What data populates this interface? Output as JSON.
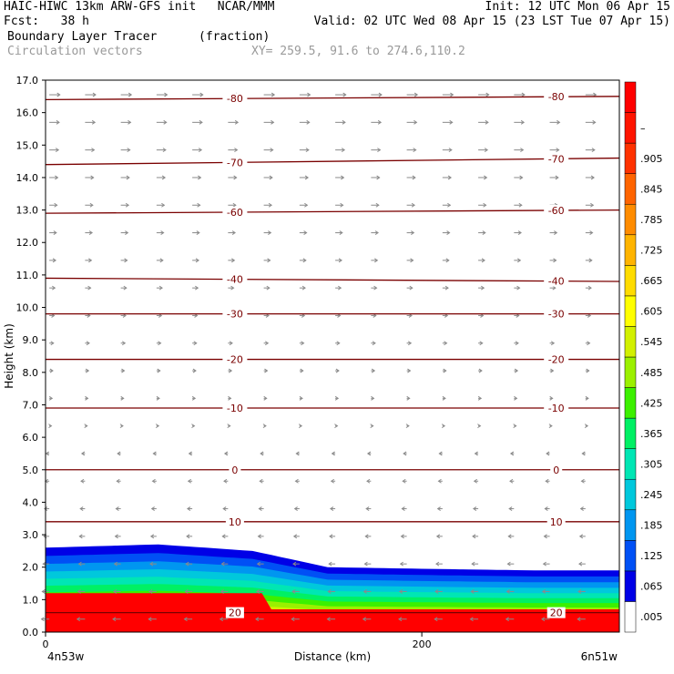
{
  "header": {
    "line1_left": "HAIC-HIWC 13km ARW-GFS init   NCAR/MMM",
    "line1_right": "Init: 12 UTC Mon 06 Apr 15",
    "line2_left": "Fcst:   38 h",
    "line2_right": "Valid: 02 UTC Wed 08 Apr 15 (23 LST Tue 07 Apr 15)",
    "field_name": "Boundary Layer Tracer",
    "field_units": "(fraction)",
    "vector_name": "Circulation vectors",
    "xy_range": "XY= 259.5, 91.6 to 274.6,110.2"
  },
  "chart_data": {
    "type": "heatmap",
    "xlabel": "Distance (km)",
    "ylabel": "Height (km)",
    "x_ticks": [
      {
        "value": 0,
        "label": "0"
      },
      {
        "value": 200,
        "label": "200"
      }
    ],
    "x_end_labels": {
      "left": "4n53w",
      "right": "6n51w"
    },
    "x_range_km": [
      0,
      305
    ],
    "ylim": [
      0,
      17
    ],
    "y_ticks": [
      "0.0",
      "1.0",
      "2.0",
      "3.0",
      "4.0",
      "5.0",
      "6.0",
      "7.0",
      "8.0",
      "9.0",
      "10.0",
      "11.0",
      "12.0",
      "13.0",
      "14.0",
      "15.0",
      "16.0",
      "17.0"
    ],
    "colorbar": {
      "labels": [
        ".005",
        ".065",
        ".125",
        ".185",
        ".245",
        ".305",
        ".365",
        ".425",
        ".485",
        ".545",
        ".605",
        ".665",
        ".725",
        ".785",
        ".845",
        ".905",
        "–"
      ],
      "colors": [
        "#ffffff",
        "#0000e6",
        "#0050f5",
        "#0096f0",
        "#00c8dc",
        "#00e6b4",
        "#00f064",
        "#3cf000",
        "#9bf000",
        "#d2f000",
        "#ffff00",
        "#ffdc00",
        "#ffb400",
        "#ff8c00",
        "#ff6400",
        "#ff3200",
        "#ff1400",
        "#ff0000"
      ]
    },
    "temperature_contours": [
      {
        "label": "-80",
        "left_km": 16.4,
        "right_km": 16.5
      },
      {
        "label": "-70",
        "left_km": 14.4,
        "right_km": 14.6
      },
      {
        "label": "-60",
        "left_km": 12.9,
        "right_km": 13.0
      },
      {
        "label": "-40",
        "left_km": 10.9,
        "right_km": 10.8
      },
      {
        "label": "-30",
        "left_km": 9.8,
        "right_km": 9.8
      },
      {
        "label": "-20",
        "left_km": 8.4,
        "right_km": 8.4
      },
      {
        "label": "-10",
        "left_km": 6.9,
        "right_km": 6.9
      },
      {
        "label": "0",
        "left_km": 5.0,
        "right_km": 5.0
      },
      {
        "label": "10",
        "left_km": 3.4,
        "right_km": 3.4
      },
      {
        "label": "20",
        "left_km": 0.6,
        "right_km": 0.6
      }
    ],
    "tracer_layer": {
      "description_values": "boundary layer tracer fraction ~1.0 in lowest ~1 km, decreasing to ~0 near 2.0–2.6 km top",
      "top_profile_km": [
        [
          0,
          2.6
        ],
        [
          60,
          2.7
        ],
        [
          110,
          2.5
        ],
        [
          150,
          2.0
        ],
        [
          200,
          1.95
        ],
        [
          260,
          1.9
        ],
        [
          305,
          1.9
        ]
      ]
    }
  }
}
